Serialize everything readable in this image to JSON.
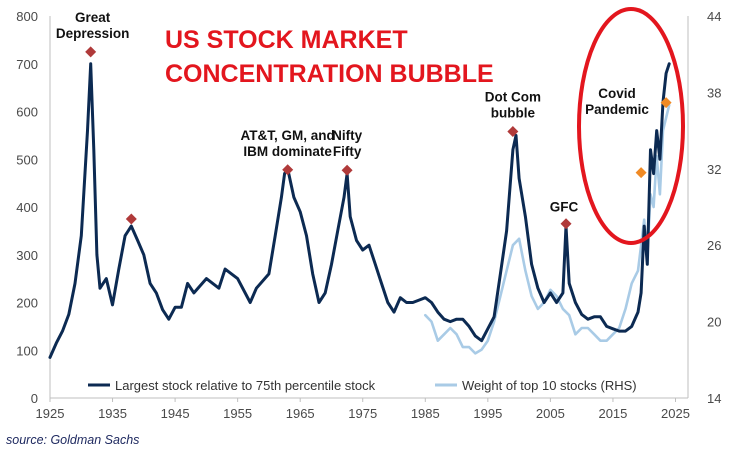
{
  "chart_data": {
    "type": "line",
    "title": [
      "US STOCK MARKET",
      "CONCENTRATION BUBBLE"
    ],
    "source": "source: Goldman Sachs",
    "xlim": [
      1925,
      2027
    ],
    "ylim": [
      0,
      800
    ],
    "y2lim": [
      14,
      44
    ],
    "x_ticks": [
      "1925",
      "1935",
      "1945",
      "1955",
      "1965",
      "1975",
      "1985",
      "1995",
      "2005",
      "2015",
      "2025"
    ],
    "y_ticks": [
      "0",
      "100",
      "200",
      "300",
      "400",
      "500",
      "600",
      "700",
      "800"
    ],
    "y2_ticks": [
      "14",
      "20",
      "26",
      "32",
      "38",
      "44"
    ],
    "colors": {
      "primary": "#0c2a52",
      "secondary": "#a9cbe6",
      "marker_red": "#b03a3a",
      "marker_orange": "#f08a24",
      "title_red": "#e3161e",
      "ellipse_red": "#e3161e",
      "axis": "#bfbfbf"
    },
    "legend": {
      "position": "bottom",
      "entries": [
        "Largest stock relative to 75th percentile stock",
        "Weight of top 10 stocks (RHS)"
      ]
    },
    "series": [
      {
        "name": "Largest stock relative to 75th percentile stock",
        "axis": "left",
        "x": [
          1925,
          1926,
          1927,
          1928,
          1929,
          1930,
          1931,
          1931.5,
          1932,
          1932.5,
          1933,
          1934,
          1935,
          1936,
          1937,
          1938,
          1939,
          1940,
          1941,
          1942,
          1943,
          1944,
          1945,
          1946,
          1947,
          1948,
          1950,
          1952,
          1953,
          1955,
          1957,
          1958,
          1960,
          1961,
          1962,
          1962.5,
          1963,
          1964,
          1965,
          1966,
          1967,
          1968,
          1969,
          1970,
          1971,
          1972,
          1972.5,
          1973,
          1974,
          1975,
          1976,
          1977,
          1978,
          1979,
          1980,
          1981,
          1982,
          1983,
          1984,
          1985,
          1986,
          1987,
          1988,
          1989,
          1990,
          1991,
          1992,
          1993,
          1994,
          1995,
          1996,
          1997,
          1998,
          1999,
          1999.5,
          2000,
          2001,
          2002,
          2003,
          2004,
          2005,
          2006,
          2007,
          2007.5,
          2008,
          2009,
          2010,
          2011,
          2012,
          2013,
          2014,
          2015,
          2016,
          2017,
          2018,
          2019,
          2019.5,
          2020,
          2020.5,
          2021,
          2021.5,
          2022,
          2022.5,
          2023,
          2023.5,
          2024
        ],
        "values": [
          85,
          115,
          140,
          175,
          240,
          340,
          560,
          700,
          520,
          300,
          230,
          250,
          195,
          270,
          340,
          360,
          330,
          300,
          240,
          220,
          185,
          165,
          190,
          190,
          240,
          220,
          250,
          230,
          270,
          250,
          200,
          230,
          260,
          340,
          420,
          470,
          480,
          420,
          390,
          340,
          260,
          200,
          220,
          280,
          350,
          420,
          470,
          380,
          330,
          310,
          320,
          280,
          240,
          200,
          180,
          210,
          200,
          200,
          205,
          210,
          200,
          180,
          165,
          160,
          165,
          165,
          150,
          130,
          120,
          145,
          170,
          260,
          350,
          520,
          550,
          460,
          380,
          280,
          230,
          200,
          220,
          200,
          220,
          360,
          240,
          200,
          175,
          165,
          170,
          170,
          150,
          145,
          140,
          140,
          150,
          180,
          220,
          360,
          280,
          520,
          470,
          560,
          500,
          620,
          680,
          700
        ],
        "markers": [
          {
            "x": 1931.5,
            "value": 725,
            "label": [
              "Great",
              "Depression"
            ]
          },
          {
            "x": 1938,
            "value": 375,
            "label": []
          },
          {
            "x": 1963,
            "value": 478,
            "label": [
              "AT&T, GM, and",
              "IBM dominate"
            ]
          },
          {
            "x": 1972.5,
            "value": 477,
            "label": [
              "Nifty",
              "Fifty"
            ]
          },
          {
            "x": 1999,
            "value": 558,
            "label": [
              "Dot Com",
              "bubble"
            ]
          },
          {
            "x": 2007.5,
            "value": 365,
            "label": [
              "GFC"
            ]
          }
        ]
      },
      {
        "name": "Weight of top 10 stocks (RHS)",
        "axis": "right",
        "x": [
          1985,
          1986,
          1987,
          1988,
          1989,
          1990,
          1991,
          1992,
          1993,
          1994,
          1995,
          1996,
          1997,
          1998,
          1999,
          2000,
          2001,
          2002,
          2003,
          2004,
          2005,
          2006,
          2007,
          2008,
          2009,
          2010,
          2011,
          2012,
          2013,
          2014,
          2015,
          2016,
          2017,
          2018,
          2019,
          2020,
          2020.5,
          2021,
          2021.5,
          2022,
          2022.5,
          2023,
          2024
        ],
        "values": [
          20.5,
          20.0,
          18.5,
          19.0,
          19.5,
          19.0,
          18.0,
          18.0,
          17.5,
          17.8,
          18.5,
          20.0,
          22.0,
          24.0,
          26.0,
          26.5,
          24.0,
          22.0,
          21.0,
          21.5,
          22.5,
          22.0,
          21.0,
          20.5,
          19.0,
          19.5,
          19.5,
          19.0,
          18.5,
          18.5,
          19.0,
          19.5,
          21.0,
          23.0,
          24.0,
          28.0,
          25.0,
          30.0,
          29.0,
          33.0,
          30.0,
          35.0,
          37.0
        ],
        "markers": [
          {
            "x": 2019.5,
            "value": 31.7,
            "label": [
              "Covid",
              "Pandemic"
            ]
          },
          {
            "x": 2023.5,
            "value": 37.2,
            "label": []
          }
        ]
      }
    ]
  }
}
